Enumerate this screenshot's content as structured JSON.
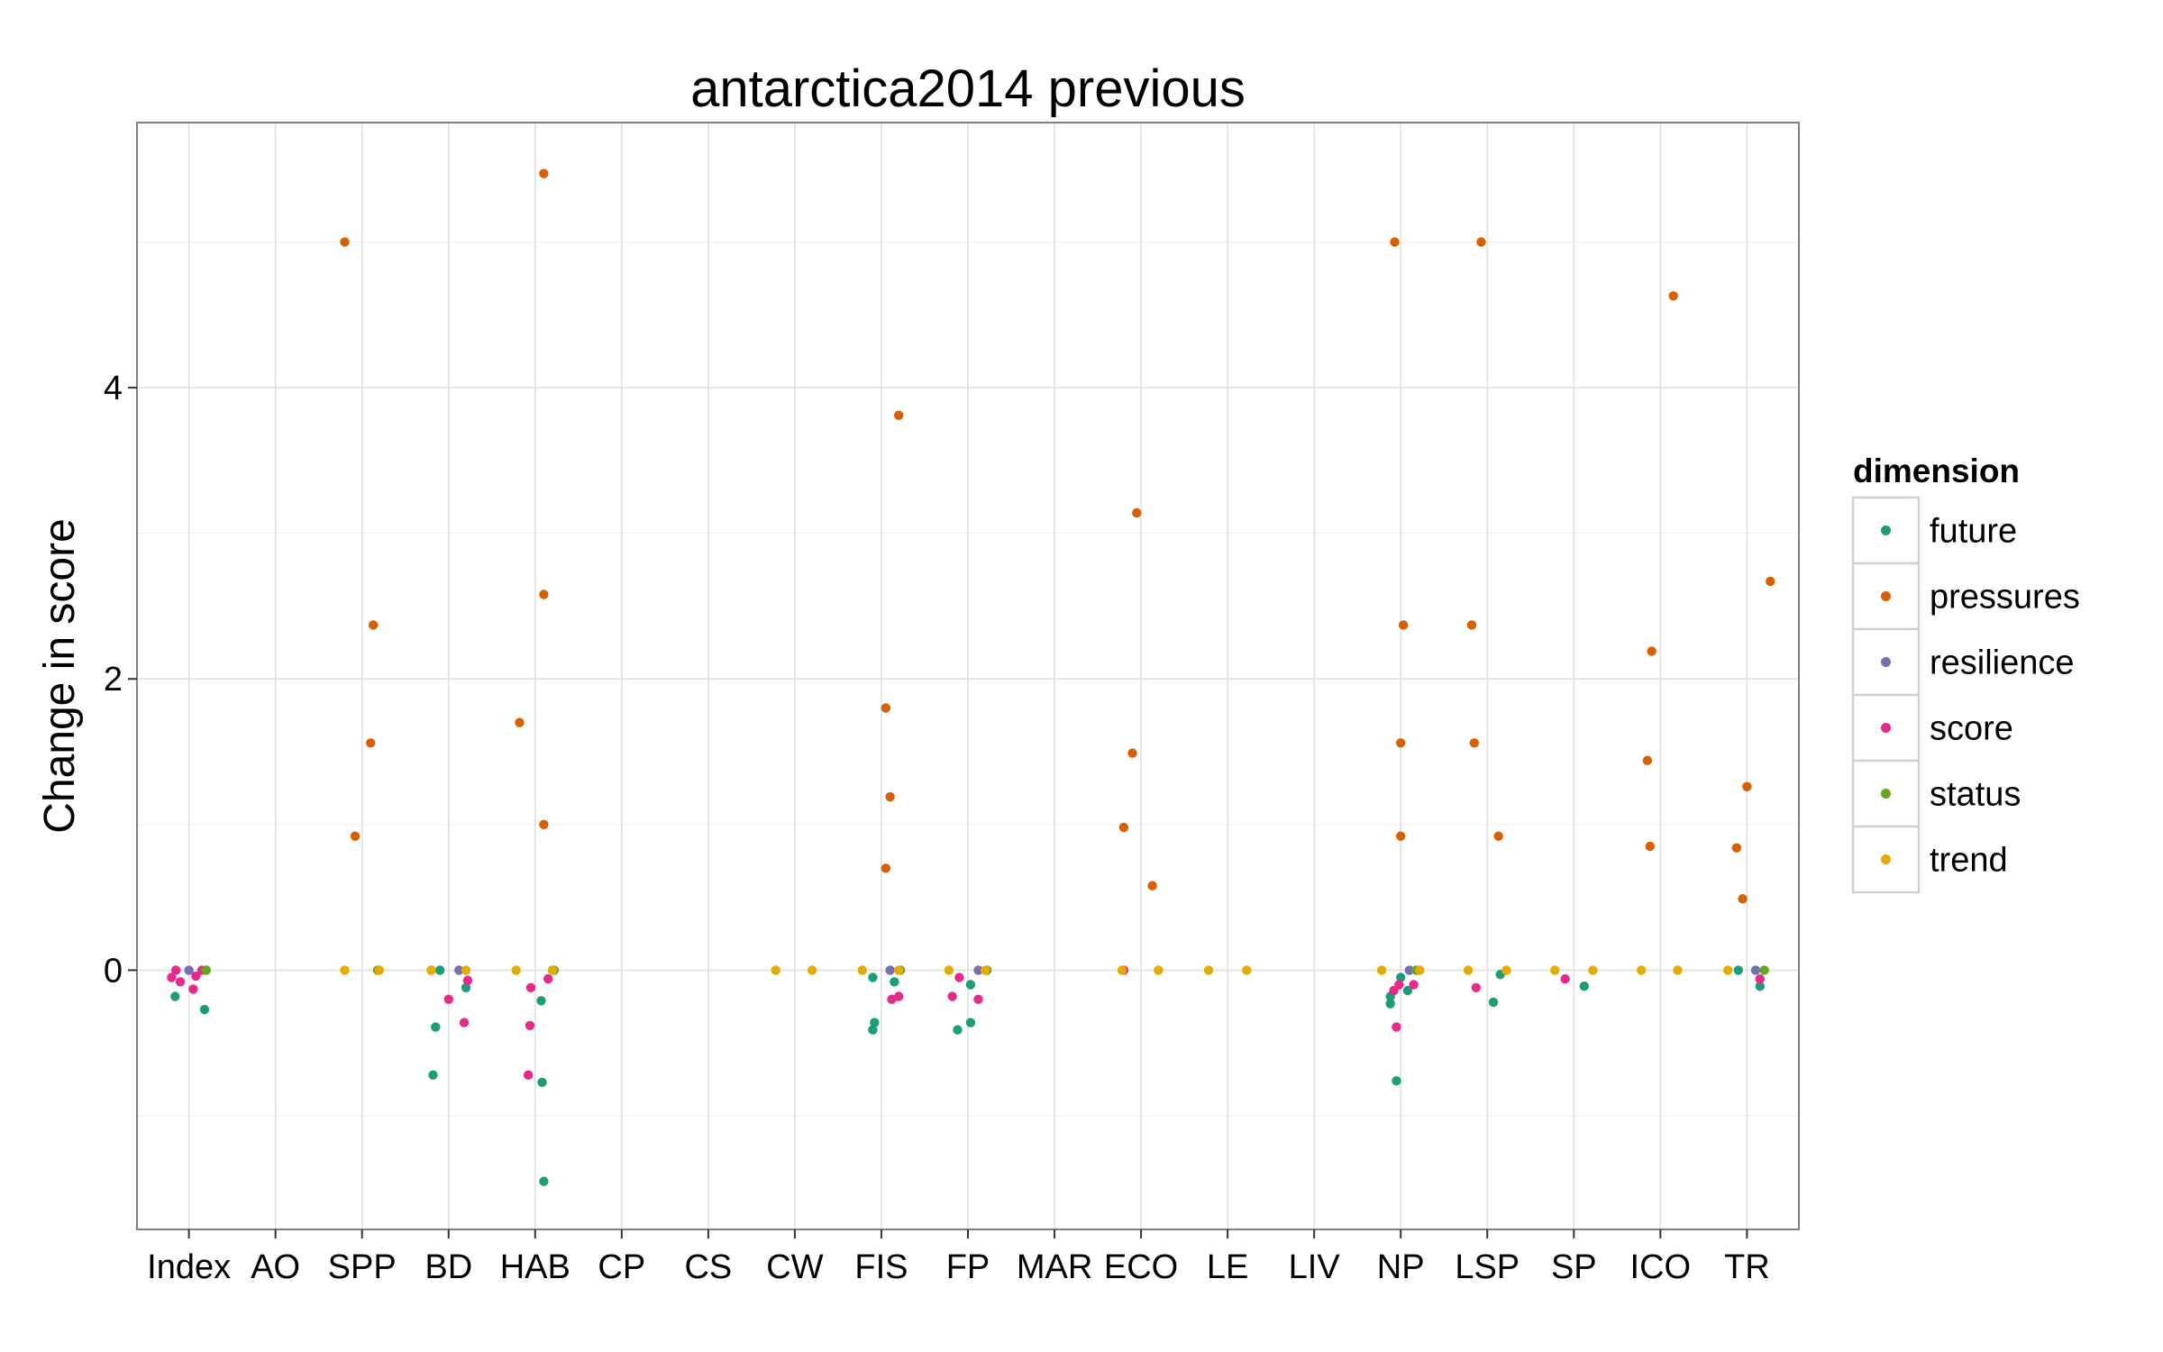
{
  "chart_data": {
    "type": "scatter",
    "title": "antarctica2014 previous",
    "xlabel": "",
    "ylabel": "Change in score",
    "categories": [
      "Index",
      "AO",
      "SPP",
      "BD",
      "HAB",
      "CP",
      "CS",
      "CW",
      "FIS",
      "FP",
      "MAR",
      "ECO",
      "LE",
      "LIV",
      "NP",
      "LSP",
      "SP",
      "ICO",
      "TR"
    ],
    "yticks": [
      0,
      2,
      4
    ],
    "ylim": [
      -1.78,
      5.82
    ],
    "grid": true,
    "legend": {
      "title": "dimension",
      "placement": "right",
      "entries": [
        "future",
        "pressures",
        "resilience",
        "score",
        "status",
        "trend"
      ]
    },
    "colors": {
      "future": "#1b9e77",
      "pressures": "#d95f02",
      "resilience": "#7570b3",
      "score": "#e7298a",
      "status": "#66a61e",
      "trend": "#e6ab02"
    },
    "series": [
      {
        "name": "future",
        "points": [
          [
            "Index",
            -0.16,
            -0.18
          ],
          [
            "Index",
            0.18,
            -0.27
          ],
          [
            "Index",
            0.2,
            0
          ],
          [
            "BD",
            -0.18,
            -0.72
          ],
          [
            "BD",
            -0.15,
            -0.39
          ],
          [
            "BD",
            0.2,
            -0.12
          ],
          [
            "BD",
            -0.1,
            0
          ],
          [
            "HAB",
            0.1,
            -1.45
          ],
          [
            "HAB",
            0.08,
            -0.77
          ],
          [
            "HAB",
            0.07,
            -0.21
          ],
          [
            "HAB",
            0.2,
            0
          ],
          [
            "FIS",
            -0.1,
            -0.41
          ],
          [
            "FIS",
            -0.08,
            -0.36
          ],
          [
            "FIS",
            0.15,
            -0.08
          ],
          [
            "FIS",
            -0.1,
            -0.05
          ],
          [
            "FP",
            -0.12,
            -0.41
          ],
          [
            "FP",
            0.03,
            -0.36
          ],
          [
            "FP",
            0.03,
            -0.1
          ],
          [
            "NP",
            -0.12,
            -0.23
          ],
          [
            "NP",
            -0.12,
            -0.18
          ],
          [
            "NP",
            -0.05,
            -0.76
          ],
          [
            "NP",
            0.08,
            -0.14
          ],
          [
            "NP",
            0.0,
            -0.05
          ],
          [
            "LSP",
            0.07,
            -0.22
          ],
          [
            "LSP",
            0.15,
            -0.03
          ],
          [
            "SP",
            0.12,
            -0.11
          ],
          [
            "TR",
            0.15,
            -0.11
          ],
          [
            "TR",
            -0.1,
            0
          ]
        ]
      },
      {
        "name": "pressures",
        "points": [
          [
            "SPP",
            -0.2,
            5.0
          ],
          [
            "SPP",
            0.13,
            2.37
          ],
          [
            "SPP",
            0.1,
            1.56
          ],
          [
            "SPP",
            -0.08,
            0.92
          ],
          [
            "HAB",
            0.1,
            5.47
          ],
          [
            "HAB",
            0.1,
            2.58
          ],
          [
            "HAB",
            -0.18,
            1.7
          ],
          [
            "HAB",
            0.1,
            1.0
          ],
          [
            "FIS",
            0.2,
            3.81
          ],
          [
            "FIS",
            0.05,
            1.8
          ],
          [
            "FIS",
            0.1,
            1.19
          ],
          [
            "FIS",
            0.05,
            0.7
          ],
          [
            "ECO",
            -0.05,
            3.14
          ],
          [
            "ECO",
            -0.1,
            1.49
          ],
          [
            "ECO",
            -0.2,
            0.98
          ],
          [
            "ECO",
            0.13,
            0.58
          ],
          [
            "NP",
            -0.07,
            5.0
          ],
          [
            "NP",
            0.03,
            2.37
          ],
          [
            "NP",
            0.0,
            1.56
          ],
          [
            "NP",
            0.0,
            0.92
          ],
          [
            "LSP",
            -0.07,
            5.0
          ],
          [
            "LSP",
            -0.18,
            2.37
          ],
          [
            "LSP",
            -0.15,
            1.56
          ],
          [
            "LSP",
            0.13,
            0.92
          ],
          [
            "ICO",
            0.15,
            4.63
          ],
          [
            "ICO",
            -0.1,
            2.19
          ],
          [
            "ICO",
            -0.15,
            1.44
          ],
          [
            "ICO",
            -0.12,
            0.85
          ],
          [
            "TR",
            0.27,
            2.67
          ],
          [
            "TR",
            0.0,
            1.26
          ],
          [
            "TR",
            -0.12,
            0.84
          ],
          [
            "TR",
            -0.05,
            0.49
          ]
        ]
      },
      {
        "name": "resilience",
        "points": [
          [
            "Index",
            0.0,
            0
          ],
          [
            "BD",
            0.12,
            0
          ],
          [
            "FIS",
            0.1,
            0
          ],
          [
            "FP",
            0.12,
            0
          ],
          [
            "NP",
            0.1,
            0
          ],
          [
            "TR",
            0.1,
            0
          ]
        ]
      },
      {
        "name": "score",
        "points": [
          [
            "Index",
            -0.2,
            -0.05
          ],
          [
            "Index",
            -0.1,
            -0.08
          ],
          [
            "Index",
            0.05,
            -0.13
          ],
          [
            "Index",
            0.08,
            -0.04
          ],
          [
            "Index",
            -0.15,
            0
          ],
          [
            "Index",
            0.15,
            0
          ],
          [
            "BD",
            0.0,
            -0.2
          ],
          [
            "BD",
            0.18,
            -0.36
          ],
          [
            "BD",
            0.22,
            -0.07
          ],
          [
            "HAB",
            -0.08,
            -0.72
          ],
          [
            "HAB",
            -0.06,
            -0.38
          ],
          [
            "HAB",
            -0.05,
            -0.12
          ],
          [
            "HAB",
            0.15,
            -0.06
          ],
          [
            "FIS",
            0.12,
            -0.2
          ],
          [
            "FIS",
            0.2,
            -0.18
          ],
          [
            "FP",
            -0.18,
            -0.18
          ],
          [
            "FP",
            0.12,
            -0.2
          ],
          [
            "FP",
            -0.1,
            -0.05
          ],
          [
            "ECO",
            -0.2,
            0
          ],
          [
            "NP",
            -0.05,
            -0.39
          ],
          [
            "NP",
            -0.08,
            -0.14
          ],
          [
            "NP",
            -0.02,
            -0.1
          ],
          [
            "NP",
            0.15,
            -0.1
          ],
          [
            "LSP",
            -0.13,
            -0.12
          ],
          [
            "SP",
            -0.1,
            -0.06
          ],
          [
            "TR",
            0.15,
            -0.06
          ]
        ]
      },
      {
        "name": "status",
        "points": [
          [
            "Index",
            0.2,
            0
          ],
          [
            "SPP",
            0.18,
            0
          ],
          [
            "BD",
            -0.2,
            0
          ],
          [
            "HAB",
            0.22,
            0
          ],
          [
            "FIS",
            0.22,
            0
          ],
          [
            "FP",
            0.22,
            0
          ],
          [
            "NP",
            0.18,
            0
          ],
          [
            "TR",
            0.2,
            0
          ]
        ]
      },
      {
        "name": "trend",
        "points": [
          [
            "SPP",
            -0.2,
            0
          ],
          [
            "SPP",
            0.2,
            0
          ],
          [
            "BD",
            -0.2,
            0
          ],
          [
            "BD",
            0.2,
            0
          ],
          [
            "HAB",
            -0.22,
            0
          ],
          [
            "HAB",
            0.2,
            0
          ],
          [
            "CW",
            -0.22,
            0
          ],
          [
            "CW",
            0.2,
            0
          ],
          [
            "FIS",
            -0.22,
            0
          ],
          [
            "FIS",
            0.2,
            0
          ],
          [
            "FP",
            -0.22,
            0
          ],
          [
            "FP",
            0.2,
            0
          ],
          [
            "ECO",
            -0.22,
            0
          ],
          [
            "ECO",
            0.2,
            0
          ],
          [
            "LE",
            -0.22,
            0
          ],
          [
            "LE",
            0.22,
            0
          ],
          [
            "NP",
            -0.22,
            0
          ],
          [
            "NP",
            0.22,
            0
          ],
          [
            "LSP",
            -0.22,
            0
          ],
          [
            "LSP",
            0.22,
            0
          ],
          [
            "SP",
            -0.22,
            0
          ],
          [
            "SP",
            0.22,
            0
          ],
          [
            "ICO",
            -0.22,
            0
          ],
          [
            "ICO",
            0.2,
            0
          ],
          [
            "TR",
            -0.22,
            0
          ]
        ]
      }
    ]
  }
}
